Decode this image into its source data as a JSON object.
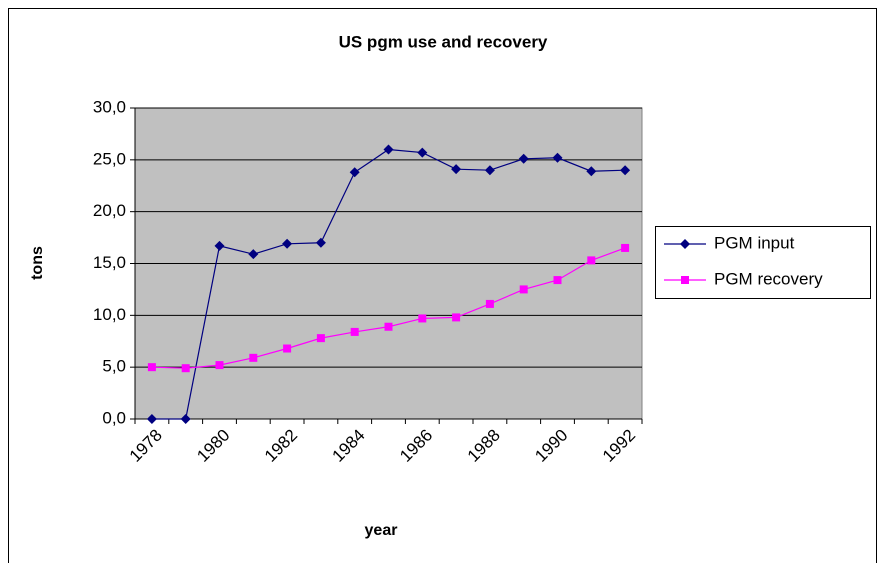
{
  "chart_data": {
    "type": "line",
    "title": "US pgm use and recovery",
    "x_label": "year",
    "y_label": "tons",
    "categories": [
      "1978",
      null,
      "1980",
      null,
      "1982",
      null,
      "1984",
      null,
      "1986",
      null,
      "1988",
      null,
      "1990",
      null,
      "1992"
    ],
    "series": [
      {
        "name": "PGM input",
        "color": "#000080",
        "marker": "diamond",
        "values": [
          0,
          0,
          16.7,
          15.9,
          16.9,
          17.0,
          23.8,
          26.0,
          25.7,
          24.1,
          24.0,
          25.1,
          25.2,
          23.9,
          24.0
        ]
      },
      {
        "name": "PGM recovery",
        "color": "#ff00ff",
        "marker": "square",
        "values": [
          5.0,
          4.9,
          5.2,
          5.9,
          6.8,
          7.8,
          8.4,
          8.9,
          9.7,
          9.8,
          11.1,
          12.5,
          13.4,
          15.3,
          16.5
        ]
      }
    ],
    "ylim": [
      0,
      30
    ],
    "yticks": [
      {
        "value": 0,
        "label": "0,0"
      },
      {
        "value": 5,
        "label": "5,0"
      },
      {
        "value": 10,
        "label": "10,0"
      },
      {
        "value": 15,
        "label": "15,0"
      },
      {
        "value": 20,
        "label": "20,0"
      },
      {
        "value": 25,
        "label": "25,0"
      },
      {
        "value": 30,
        "label": "30,0"
      }
    ],
    "grid": true,
    "legend": "right"
  }
}
